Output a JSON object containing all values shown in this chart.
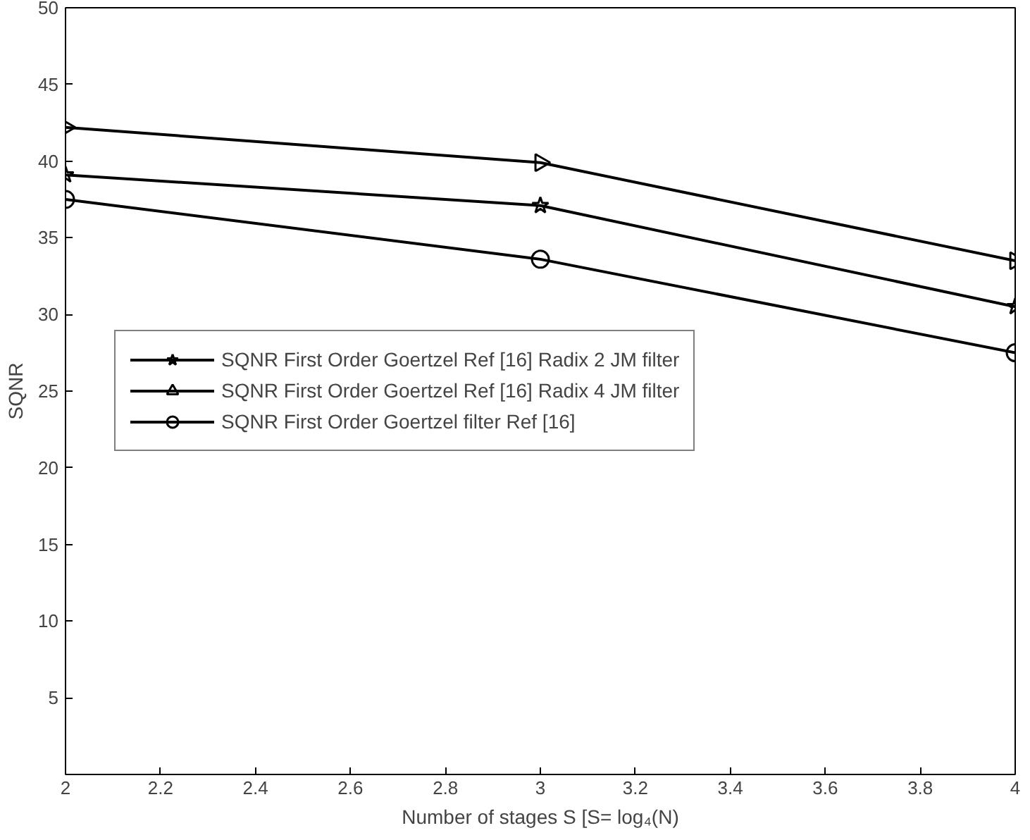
{
  "chart_data": {
    "type": "line",
    "xlabel": "Number of stages S [S= log₄(N)",
    "ylabel": "SQNR",
    "x": [
      2,
      3,
      4
    ],
    "series": [
      {
        "name": "SQNR First Order Goertzel Ref [16] Radix 2 JM filter",
        "color": "#000000",
        "values": [
          39.1,
          37.1,
          30.5
        ],
        "marker": "star"
      },
      {
        "name": "SQNR First Order Goertzel Ref [16] Radix 4 JM filter",
        "color": "#000000",
        "values": [
          42.2,
          39.9,
          33.5
        ],
        "marker": "triangle"
      },
      {
        "name": "SQNR First Order Goertzel filter Ref [16]",
        "color": "#000000",
        "values": [
          37.5,
          33.6,
          27.5
        ],
        "marker": "circle"
      }
    ],
    "xlim": [
      2,
      4
    ],
    "xticks": [
      2,
      {
        "value": 2.2,
        "label": "2.2"
      },
      {
        "value": 2.4,
        "label": "2.4"
      },
      {
        "value": 2.6,
        "label": "2.6"
      },
      {
        "value": 2.8,
        "label": "2.8"
      },
      3,
      {
        "value": 3.2,
        "label": "3.2"
      },
      {
        "value": 3.4,
        "label": "3.4"
      },
      {
        "value": 3.6,
        "label": "3.6"
      },
      {
        "value": 3.8,
        "label": "3.8"
      },
      4
    ],
    "ylim": [
      0,
      50
    ],
    "yticks": [
      5,
      10,
      15,
      20,
      25,
      30,
      35,
      40,
      45,
      50
    ],
    "grid": false,
    "legend": "center left",
    "line_style": "solid"
  }
}
